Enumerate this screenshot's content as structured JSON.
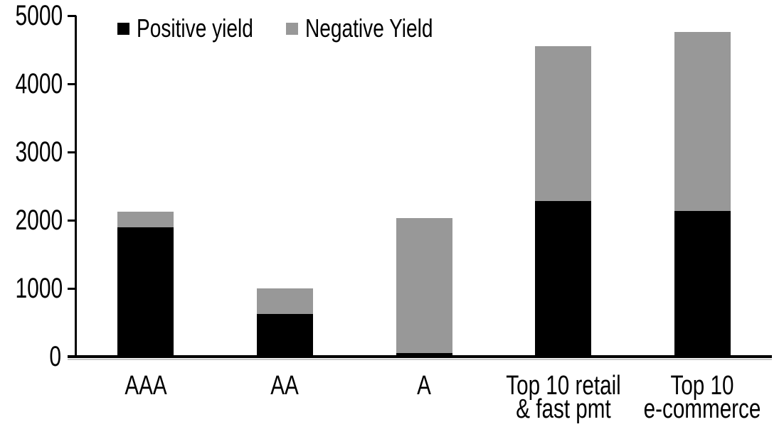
{
  "chart_data": {
    "type": "bar",
    "stacked": true,
    "title": "",
    "xlabel": "",
    "ylabel": "",
    "categories": [
      "AAA",
      "AA",
      "A",
      "Top 10 retail\n& fast pmt",
      "Top 10\ne-commerce"
    ],
    "series": [
      {
        "name": "Positive yield",
        "color": "#000000",
        "values": [
          1900,
          620,
          50,
          2280,
          2140
        ]
      },
      {
        "name": "Negative Yield",
        "color": "#989898",
        "values": [
          220,
          380,
          1980,
          2270,
          2620
        ]
      }
    ],
    "totals": [
      2120,
      1000,
      2030,
      4550,
      4760
    ],
    "ylim": [
      0,
      5000
    ],
    "yticks": [
      0,
      1000,
      2000,
      3000,
      4000,
      5000
    ],
    "grid": false,
    "legend_position": "top",
    "colors": {
      "positive": "#000000",
      "negative": "#989898",
      "background": "#ffffff",
      "axis": "#000000"
    }
  }
}
